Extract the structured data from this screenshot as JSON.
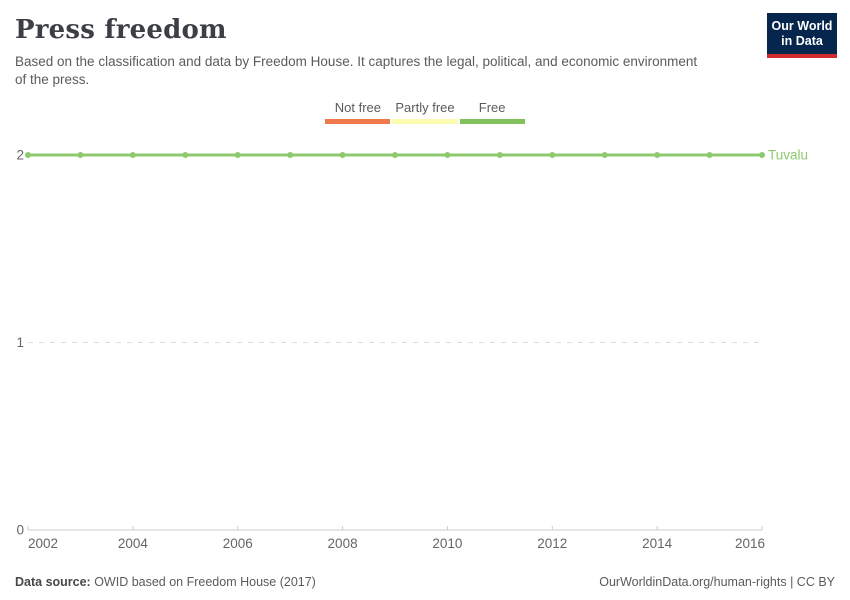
{
  "header": {
    "title": "Press freedom",
    "subtitle": "Based on the classification and data by Freedom House. It captures the legal, political, and economic environment of the press.",
    "logo": {
      "line1": "Our World",
      "line2": "in Data",
      "bg_color": "#06264d",
      "bar_color": "#cf2b2f"
    }
  },
  "legend": {
    "items": [
      {
        "label": "Not free",
        "color": "#f0794b"
      },
      {
        "label": "Partly free",
        "color": "#fbfcb0"
      },
      {
        "label": "Free",
        "color": "#83c15e"
      }
    ]
  },
  "chart_data": {
    "type": "line",
    "title": "Press freedom",
    "x": [
      2002,
      2003,
      2004,
      2005,
      2006,
      2007,
      2008,
      2009,
      2010,
      2011,
      2012,
      2013,
      2014,
      2015,
      2016
    ],
    "series": [
      {
        "name": "Tuvalu",
        "color": "#8dc96e",
        "values": [
          2,
          2,
          2,
          2,
          2,
          2,
          2,
          2,
          2,
          2,
          2,
          2,
          2,
          2,
          2
        ]
      }
    ],
    "xlim": [
      2002,
      2016
    ],
    "ylim": [
      0,
      2
    ],
    "xticks": [
      2002,
      2004,
      2006,
      2008,
      2010,
      2012,
      2014,
      2016
    ],
    "yticks": [
      0,
      1,
      2
    ],
    "value_category_labels": {
      "0": "Not free",
      "1": "Partly free",
      "2": "Free"
    },
    "grid": "horizontal-dashed",
    "legend_position": "top-center",
    "axis_color": "#cccccc",
    "grid_color": "#dddddd",
    "tick_label_color": "#666666"
  },
  "footer": {
    "source_label": "Data source:",
    "source_text": " OWID based on Freedom House (2017)",
    "right_text": "OurWorldinData.org/human-rights | CC BY"
  }
}
